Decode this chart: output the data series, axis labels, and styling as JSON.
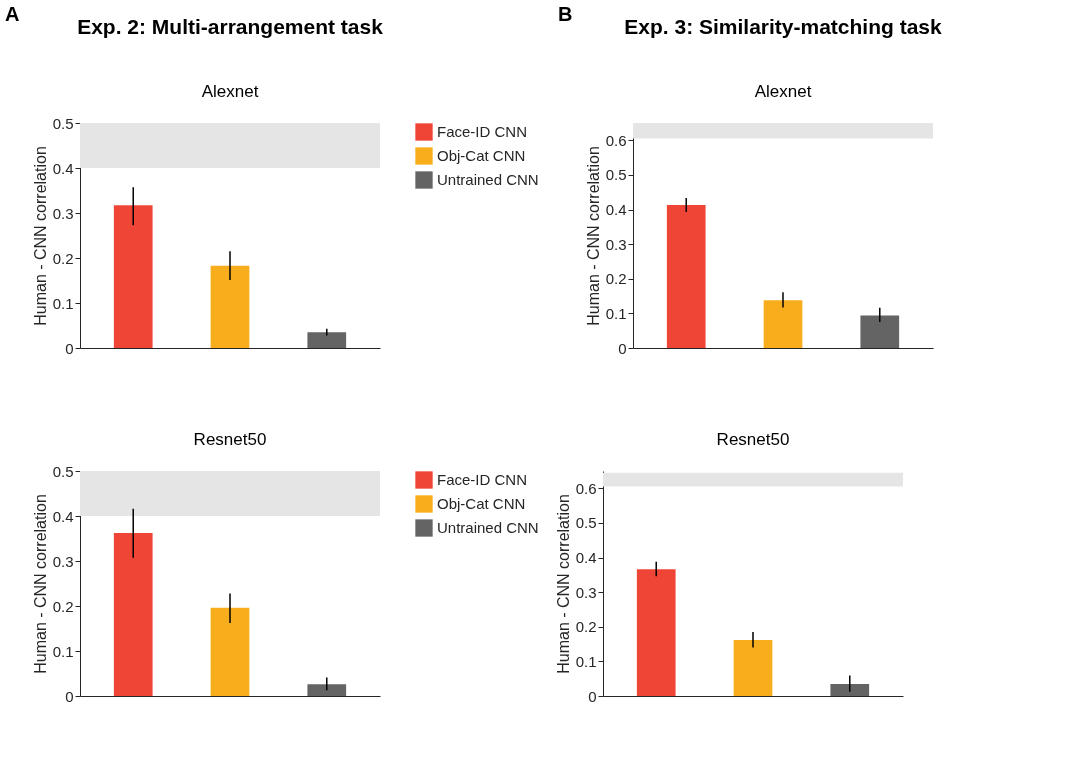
{
  "chart_data": [
    {
      "type": "bar",
      "title": "Exp. 2: Multi-arrangement task",
      "subtitle": "Alexnet",
      "ylabel": "Human - CNN correlation",
      "annotations": [
        "A"
      ],
      "categories": [
        null,
        null,
        null
      ],
      "tick_labels": "y",
      "ylim": [
        0,
        0.5
      ],
      "yticks": [
        0,
        0.1,
        0.2,
        0.3,
        0.4,
        0.5
      ],
      "legend": "right",
      "bands": [
        {
          "axis": "y",
          "from": 0.4,
          "to": 0.5,
          "color": "#e5e5e5"
        }
      ],
      "series": [
        {
          "name": "Face-ID CNN",
          "color": "#ef4537",
          "values": [
            0.317,
            null,
            null
          ],
          "errors": [
            [
              0.273,
              0.357
            ],
            null,
            null
          ]
        },
        {
          "name": "Obj-Cat CNN",
          "color": "#f8ad1c",
          "values": [
            null,
            0.183,
            null
          ],
          "errors": [
            null,
            [
              0.151,
              0.215
            ],
            null
          ]
        },
        {
          "name": "Untrained CNN",
          "color": "#646464",
          "values": [
            null,
            null,
            0.035
          ],
          "errors": [
            null,
            null,
            [
              0.028,
              0.043
            ]
          ]
        }
      ]
    },
    {
      "type": "bar",
      "title": "Exp. 3: Similarity-matching task",
      "subtitle": "Alexnet",
      "ylabel": "Human - CNN correlation",
      "annotations": [
        "B"
      ],
      "categories": [
        null,
        null,
        null
      ],
      "tick_labels": "y",
      "ylim": [
        0,
        0.65
      ],
      "yticks": [
        0,
        0.1,
        0.2,
        0.3,
        0.4,
        0.5,
        0.6
      ],
      "bands": [
        {
          "axis": "y",
          "from": 0.605,
          "to": 0.65,
          "color": "#e5e5e5"
        }
      ],
      "series": [
        {
          "color": "#ef4537",
          "values": [
            0.413,
            null,
            null
          ],
          "errors": [
            [
              0.393,
              0.433
            ],
            null,
            null
          ]
        },
        {
          "color": "#f8ad1c",
          "values": [
            null,
            0.138,
            null
          ],
          "errors": [
            null,
            [
              0.117,
              0.161
            ],
            null
          ]
        },
        {
          "color": "#646464",
          "values": [
            null,
            null,
            0.094
          ],
          "errors": [
            null,
            null,
            [
              0.075,
              0.116
            ]
          ]
        }
      ]
    },
    {
      "type": "bar",
      "title": "Resnet50",
      "ylabel": "Human - CNN correlation",
      "categories": [
        null,
        null,
        null
      ],
      "tick_labels": "y",
      "ylim": [
        0,
        0.5
      ],
      "yticks": [
        0,
        0.1,
        0.2,
        0.3,
        0.4,
        0.5
      ],
      "legend": "right",
      "bands": [
        {
          "axis": "y",
          "from": 0.4,
          "to": 0.5,
          "color": "#e5e5e5"
        }
      ],
      "series": [
        {
          "name": "Face-ID CNN",
          "color": "#ef4537",
          "values": [
            0.362,
            null,
            null
          ],
          "errors": [
            [
              0.307,
              0.416
            ],
            null,
            null
          ]
        },
        {
          "name": "Obj-Cat CNN",
          "color": "#f8ad1c",
          "values": [
            null,
            0.196,
            null
          ],
          "errors": [
            null,
            [
              0.162,
              0.228
            ],
            null
          ]
        },
        {
          "name": "Untrained CNN",
          "color": "#646464",
          "values": [
            null,
            null,
            0.026
          ],
          "errors": [
            null,
            null,
            [
              0.013,
              0.041
            ]
          ]
        }
      ]
    },
    {
      "type": "bar",
      "title": "Resnet50",
      "ylabel": "Human - CNN correlation",
      "categories": [
        null,
        null,
        null
      ],
      "tick_labels": "y",
      "ylim": [
        0,
        0.65
      ],
      "yticks": [
        0,
        0.1,
        0.2,
        0.3,
        0.4,
        0.5,
        0.6
      ],
      "bands": [
        {
          "axis": "y",
          "from": 0.605,
          "to": 0.645,
          "color": "#e5e5e5"
        }
      ],
      "series": [
        {
          "color": "#ef4537",
          "values": [
            0.366,
            null,
            null
          ],
          "errors": [
            [
              0.346,
              0.388
            ],
            null,
            null
          ]
        },
        {
          "color": "#f8ad1c",
          "values": [
            null,
            0.162,
            null
          ],
          "errors": [
            null,
            [
              0.14,
              0.185
            ],
            null
          ]
        },
        {
          "color": "#646464",
          "values": [
            null,
            null,
            0.035
          ],
          "errors": [
            null,
            null,
            [
              0.012,
              0.059
            ]
          ]
        }
      ]
    }
  ]
}
